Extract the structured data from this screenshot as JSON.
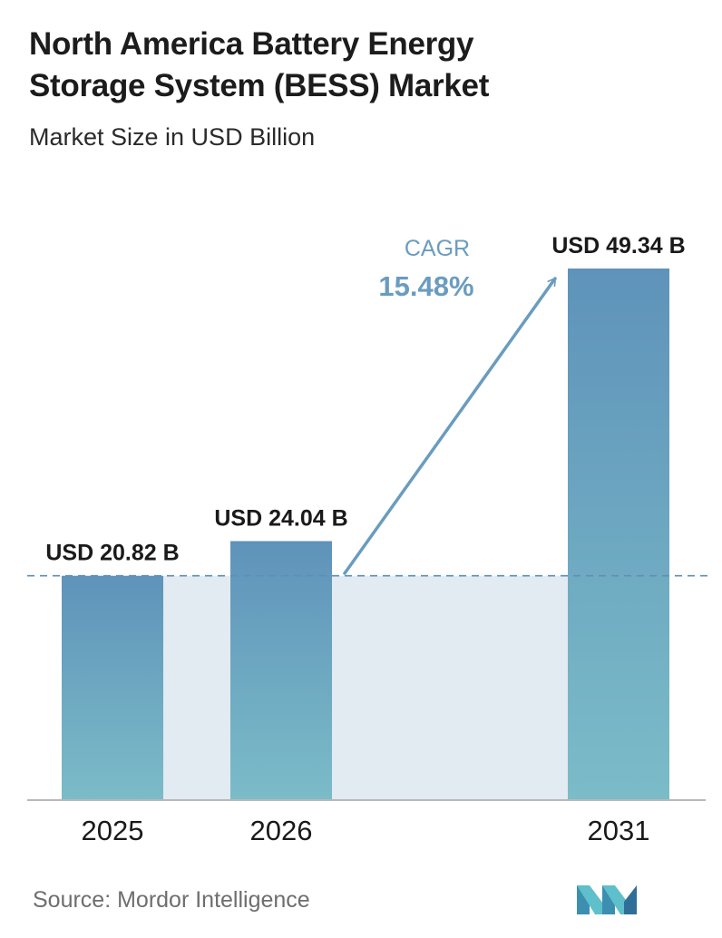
{
  "header": {
    "title_line1": "North America Battery Energy",
    "title_line2": "Storage System (BESS) Market",
    "subtitle": "Market Size in USD Billion"
  },
  "footer": {
    "source": "Source:  Mordor Intelligence",
    "logo_icon": "mordor-intelligence-logo"
  },
  "colors": {
    "bar_top": "#5f93ba",
    "bar_bottom": "#7bbcc8",
    "band": "#e2eaf2",
    "annotation": "#6a9cbf",
    "dashed_line": "#5e8fb5",
    "axis": "#b8b8b8"
  },
  "chart_data": {
    "type": "bar",
    "categories": [
      "2025",
      "2026",
      "2031"
    ],
    "values": [
      20.82,
      24.04,
      49.34
    ],
    "data_labels": [
      "USD 20.82 B",
      "USD 24.04 B",
      "USD 49.34 B"
    ],
    "title": "North America Battery Energy Storage System (BESS) Market",
    "subtitle": "Market Size in USD Billion",
    "ylim": [
      0,
      49.34
    ],
    "grid": false,
    "reference_line_value": 20.82,
    "annotation": {
      "label": "CAGR",
      "value": "15.48%"
    }
  }
}
